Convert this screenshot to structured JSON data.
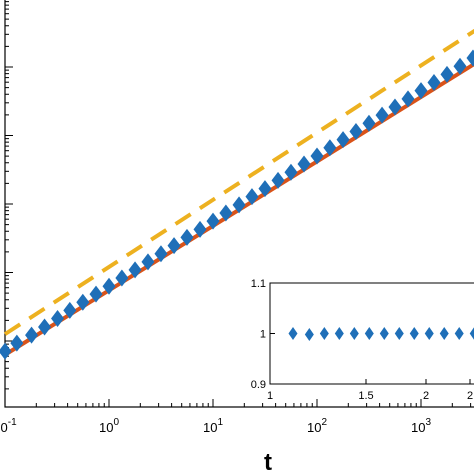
{
  "chart_data": [
    {
      "type": "line",
      "xlabel": "t",
      "ylabel": "",
      "x_scale": "log",
      "y_scale": "log",
      "xlim": [
        0.1,
        5000
      ],
      "ylim": [
        0.1,
        10000000
      ],
      "x_tick_labels": [
        {
          "value": 0.1,
          "base": "10",
          "exp": "-1"
        },
        {
          "value": 1,
          "base": "10",
          "exp": "0"
        },
        {
          "value": 10,
          "base": "10",
          "exp": "1"
        },
        {
          "value": 100,
          "base": "10",
          "exp": "2"
        },
        {
          "value": 1000,
          "base": "10",
          "exp": "3"
        }
      ],
      "grid": false,
      "series": [
        {
          "style": "markers",
          "marker": "diamond",
          "color": "#1f6fb8",
          "x": [
            0.1,
            0.13,
            0.18,
            0.24,
            0.32,
            0.42,
            0.56,
            0.75,
            1.0,
            1.33,
            1.78,
            2.37,
            3.16,
            4.22,
            5.62,
            7.5,
            10.0,
            13.3,
            17.8,
            23.7,
            31.6,
            42.2,
            56.2,
            75.0,
            100.0,
            133.0,
            178.0,
            237.0,
            316.0,
            422.0,
            562.0,
            750.0,
            1000.0,
            1333.0,
            1778.0,
            2371.0,
            3162.0,
            4217.0
          ],
          "y": [
            0.71,
            0.93,
            1.22,
            1.6,
            2.13,
            2.8,
            3.68,
            4.84,
            6.31,
            8.3,
            10.9,
            14.3,
            18.8,
            24.7,
            32.5,
            42.7,
            56.2,
            73.9,
            97.3,
            128.0,
            168.0,
            221.0,
            291.0,
            383.0,
            503.0,
            662.0,
            871.0,
            1146.0,
            1507.0,
            1982.0,
            2608.0,
            3431.0,
            4513.0,
            5937.0,
            7811.0,
            10275.0,
            13517.0,
            17783.0
          ]
        },
        {
          "style": "solid",
          "color": "#d95319",
          "x": [
            0.1,
            4500
          ],
          "y": [
            0.63,
            15000
          ]
        },
        {
          "style": "dashed",
          "color": "#edb120",
          "x": [
            0.1,
            4500
          ],
          "y": [
            1.26,
            46000
          ]
        }
      ]
    },
    {
      "type": "scatter",
      "xlim": [
        1,
        2.6
      ],
      "ylim": [
        0.9,
        1.1
      ],
      "x_tick_labels": [
        "1",
        "1.5",
        "2",
        "2"
      ],
      "y_tick_labels": [
        "1.1",
        "1",
        "0.9"
      ],
      "series": [
        {
          "marker": "diamond",
          "color": "#1f6fb8",
          "x": [
            1.0,
            1.12,
            1.23,
            1.34,
            1.45,
            1.56,
            1.67,
            1.78,
            1.89,
            2.0,
            2.11,
            2.22,
            2.33,
            2.44,
            2.55
          ],
          "y": [
            1.0,
            0.998,
            1.0,
            1.0,
            1.0,
            1.0,
            1.0,
            1.0,
            1.0,
            1.0,
            1.0,
            1.0,
            1.0,
            1.0,
            1.0
          ]
        }
      ]
    }
  ]
}
